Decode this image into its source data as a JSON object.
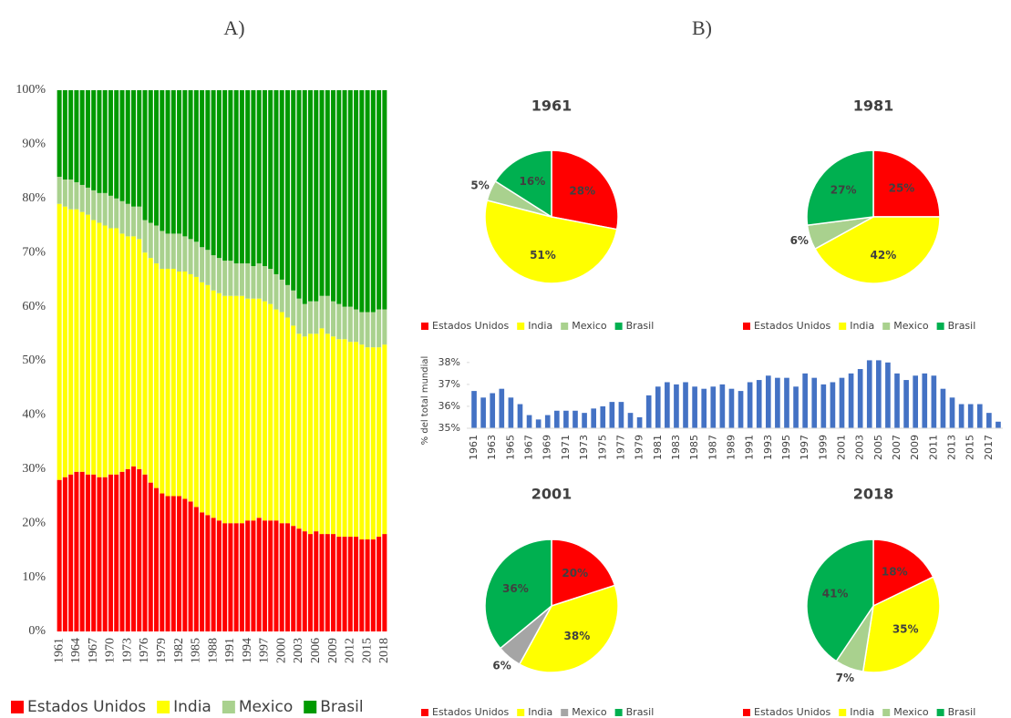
{
  "chart_data": [
    {
      "type": "bar",
      "stacked": true,
      "panel": "A)",
      "categories": [
        "1961",
        null,
        null,
        "1964",
        null,
        null,
        "1967",
        null,
        null,
        "1970",
        null,
        null,
        "1973",
        null,
        null,
        "1976",
        null,
        null,
        "1979",
        null,
        null,
        "1982",
        null,
        null,
        "1985",
        null,
        null,
        "1988",
        null,
        null,
        "1991",
        null,
        null,
        "1994",
        null,
        null,
        "1997",
        null,
        null,
        "2000",
        null,
        null,
        "2003",
        null,
        null,
        "2006",
        null,
        null,
        "2009",
        null,
        null,
        "2012",
        null,
        null,
        "2015",
        null,
        null,
        "2018"
      ],
      "series": [
        {
          "name": "Estados Unidos",
          "color": "#ff0000",
          "values": [
            28,
            28.5,
            29,
            29.5,
            29.5,
            29,
            29,
            28.5,
            28.5,
            29,
            29,
            29.5,
            30,
            30.5,
            30,
            29,
            27.5,
            26.5,
            25.5,
            25,
            25,
            25,
            24.5,
            24,
            23,
            22,
            21.5,
            21,
            20.5,
            20,
            20,
            20,
            20,
            20.5,
            20.5,
            21,
            20.5,
            20.5,
            20.5,
            20,
            20,
            19.5,
            19,
            18.5,
            18,
            18.5,
            18,
            18,
            18,
            17.5,
            17.5,
            17.5,
            17.5,
            17,
            17,
            17,
            17.5,
            18
          ]
        },
        {
          "name": "India",
          "color": "#ffff00",
          "values": [
            51,
            50,
            49,
            48.5,
            48,
            48,
            47,
            47,
            46.5,
            45.5,
            45.5,
            44,
            43,
            42.5,
            42.5,
            41,
            41.5,
            41.5,
            41.5,
            42,
            42,
            41.5,
            42,
            42,
            42.5,
            42.5,
            42.5,
            42,
            42,
            42,
            42,
            42,
            42,
            41,
            41,
            40.5,
            40.5,
            40,
            39,
            39,
            38,
            37,
            36,
            36,
            37,
            36.5,
            38,
            37,
            36.5,
            36.5,
            36.5,
            36,
            36,
            36,
            35.5,
            35.5,
            35,
            35
          ]
        },
        {
          "name": "Mexico",
          "color": "#a9d18e",
          "values": [
            5,
            5,
            5.5,
            5,
            5,
            5,
            5.5,
            5.5,
            6,
            6,
            5.5,
            6,
            6,
            5.5,
            6,
            6,
            6.5,
            7,
            7,
            6.5,
            6.5,
            7,
            6.5,
            6.5,
            6.5,
            6.5,
            6.5,
            6.5,
            6.5,
            6.5,
            6.5,
            6,
            6,
            6.5,
            6,
            6.5,
            6.5,
            6.5,
            6.5,
            6,
            6,
            6.5,
            6.5,
            6,
            6,
            6,
            6,
            7,
            6.5,
            6.5,
            6,
            6.5,
            6,
            6,
            6.5,
            6.5,
            7,
            6.5
          ]
        },
        {
          "name": "Brasil",
          "color": "#009a00",
          "values": [
            16,
            16.5,
            16.5,
            17,
            17.5,
            18,
            18.5,
            19,
            19,
            19.5,
            20,
            20.5,
            21,
            21.5,
            21.5,
            24,
            24.5,
            25,
            26,
            26.5,
            26.5,
            26.5,
            27,
            27.5,
            28,
            29,
            29.5,
            30.5,
            31,
            31.5,
            31.5,
            32,
            32,
            32,
            32.5,
            32,
            32.5,
            33,
            34,
            35,
            36,
            37,
            38.5,
            39.5,
            39,
            39,
            38,
            38,
            39,
            39.5,
            40,
            40,
            40.5,
            41,
            41,
            41,
            40.5,
            40.5
          ]
        }
      ],
      "ylim": [
        0,
        100
      ],
      "yticks": [
        {
          "value": 0,
          "label": "0%"
        },
        {
          "value": 10,
          "label": "10%"
        },
        {
          "value": 20,
          "label": "20%"
        },
        {
          "value": 30,
          "label": "30%"
        },
        {
          "value": 40,
          "label": "40%"
        },
        {
          "value": 50,
          "label": "50%"
        },
        {
          "value": 60,
          "label": "60%"
        },
        {
          "value": 70,
          "label": "70%"
        },
        {
          "value": 80,
          "label": "80%"
        },
        {
          "value": 90,
          "label": "90%"
        },
        {
          "value": 100,
          "label": "100%"
        }
      ]
    },
    {
      "type": "pie",
      "panel": "B)",
      "title": "1961",
      "categories": [
        "Estados Unidos",
        "India",
        "Mexico",
        "Brasil"
      ],
      "values": [
        28,
        51,
        5,
        16
      ],
      "value_labels": [
        "28%",
        "51%",
        "5%",
        "16%"
      ],
      "colors": [
        "#ff0000",
        "#ffff00",
        "#a9d18e",
        "#00b050"
      ]
    },
    {
      "type": "pie",
      "title": "1981",
      "categories": [
        "Estados Unidos",
        "India",
        "Mexico",
        "Brasil"
      ],
      "values": [
        25,
        42,
        6,
        27
      ],
      "value_labels": [
        "25%",
        "42%",
        "6%",
        "27%"
      ],
      "colors": [
        "#ff0000",
        "#ffff00",
        "#a9d18e",
        "#00b050"
      ]
    },
    {
      "type": "bar",
      "y_label": "% del total mundial",
      "color": "#4472c4",
      "categories": [
        "1961",
        null,
        "1963",
        null,
        "1965",
        null,
        "1967",
        null,
        "1969",
        null,
        "1971",
        null,
        "1973",
        null,
        "1975",
        null,
        "1977",
        null,
        "1979",
        null,
        "1981",
        null,
        "1983",
        null,
        "1985",
        null,
        "1987",
        null,
        "1989",
        null,
        "1991",
        null,
        "1993",
        null,
        "1995",
        null,
        "1997",
        null,
        "1999",
        null,
        "2001",
        null,
        "2003",
        null,
        "2005",
        null,
        "2007",
        null,
        "2009",
        null,
        "2011",
        null,
        "2013",
        null,
        "2015",
        null,
        "2017",
        null
      ],
      "values": [
        36.7,
        36.4,
        36.6,
        36.8,
        36.4,
        36.1,
        35.6,
        35.4,
        35.6,
        35.8,
        35.8,
        35.8,
        35.7,
        35.9,
        36.0,
        36.2,
        36.2,
        35.7,
        35.5,
        36.5,
        36.9,
        37.1,
        37.0,
        37.1,
        36.9,
        36.8,
        36.9,
        37.0,
        36.8,
        36.7,
        37.1,
        37.2,
        37.4,
        37.3,
        37.3,
        36.9,
        37.5,
        37.3,
        37.0,
        37.1,
        37.3,
        37.5,
        37.7,
        38.1,
        38.1,
        38.0,
        37.5,
        37.2,
        37.4,
        37.5,
        37.4,
        36.8,
        36.4,
        36.1,
        36.1,
        36.1,
        35.7,
        35.3
      ],
      "ylim": [
        35,
        38.2
      ],
      "yticks": [
        {
          "value": 35,
          "label": "35%"
        },
        {
          "value": 36,
          "label": "36%"
        },
        {
          "value": 37,
          "label": "37%"
        },
        {
          "value": 38,
          "label": "38%"
        }
      ]
    },
    {
      "type": "pie",
      "title": "2001",
      "categories": [
        "Estados Unidos",
        "India",
        "Mexico",
        "Brasil"
      ],
      "values": [
        20,
        38,
        6,
        36
      ],
      "value_labels": [
        "20%",
        "38%",
        "6%",
        "36%"
      ],
      "colors": [
        "#ff0000",
        "#ffff00",
        "#a5a5a5",
        "#00b050"
      ]
    },
    {
      "type": "pie",
      "title": "2018",
      "categories": [
        "Estados Unidos",
        "India",
        "Mexico",
        "Brasil"
      ],
      "values": [
        18,
        35,
        7,
        41
      ],
      "value_labels": [
        "18%",
        "35%",
        "7%",
        "41%"
      ],
      "colors": [
        "#ff0000",
        "#ffff00",
        "#a9d18e",
        "#00b050"
      ]
    }
  ]
}
